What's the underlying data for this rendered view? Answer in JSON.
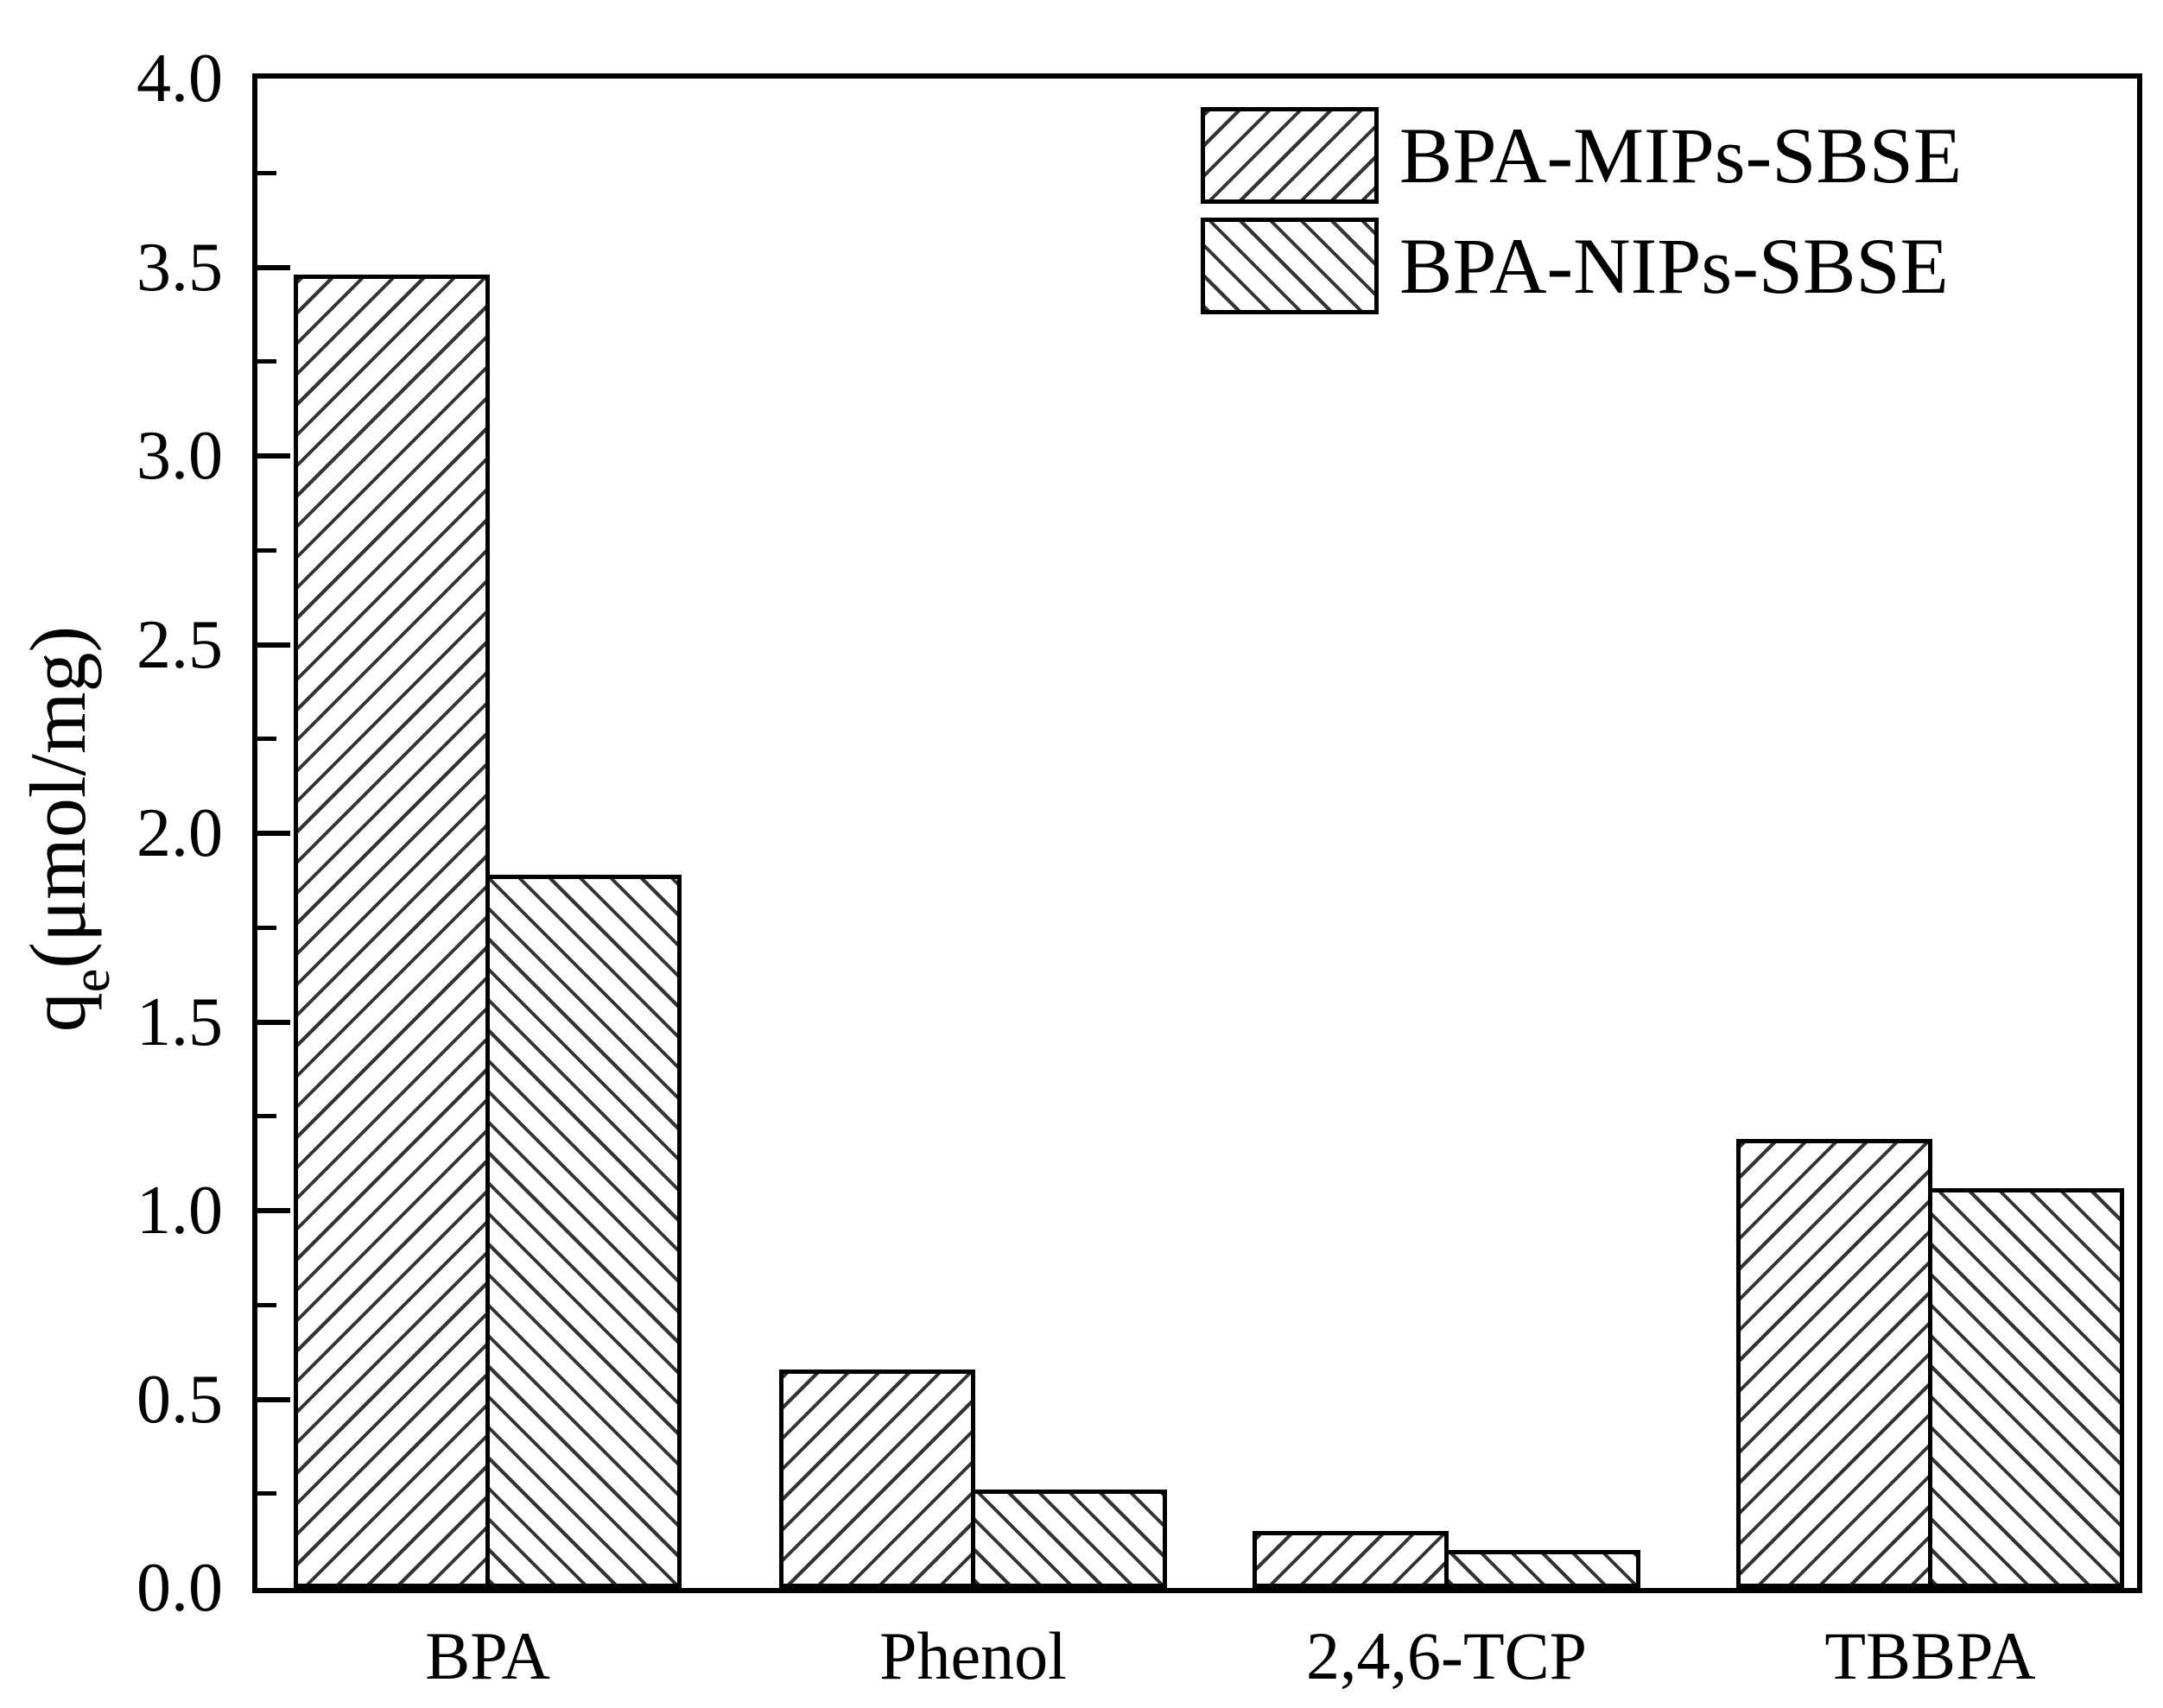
{
  "figure": {
    "background_color": "#ffffff",
    "frame_color": "#000000",
    "hatch_color": "#333333"
  },
  "y_axis": {
    "title_main": "q",
    "title_sub": "e",
    "title_units": "(μmol/mg)",
    "min": 0.0,
    "max": 4.0,
    "major_step": 0.5,
    "minor_step": 0.25,
    "tick_labels": [
      "0.0",
      "0.5",
      "1.0",
      "1.5",
      "2.0",
      "2.5",
      "3.0",
      "3.5",
      "4.0"
    ]
  },
  "legend": {
    "position": "top-right",
    "items": [
      {
        "label": "BPA-MIPs-SBSE",
        "hatch": "/"
      },
      {
        "label": "BPA-NIPs-SBSE",
        "hatch": "\\"
      }
    ]
  },
  "chart_data": {
    "type": "bar",
    "title": "",
    "xlabel": "",
    "ylabel": "qe(μmol/mg)",
    "ylim": [
      0.0,
      4.0
    ],
    "grid": false,
    "legend_position": "top-right",
    "categories": [
      "BPA",
      "Phenol",
      "2,4,6-TCP",
      "TBBPA"
    ],
    "series": [
      {
        "name": "BPA-MIPs-SBSE",
        "hatch": "/",
        "values": [
          3.48,
          0.58,
          0.15,
          1.19
        ]
      },
      {
        "name": "BPA-NIPs-SBSE",
        "hatch": "\\",
        "values": [
          1.89,
          0.26,
          0.1,
          1.06
        ]
      }
    ]
  }
}
